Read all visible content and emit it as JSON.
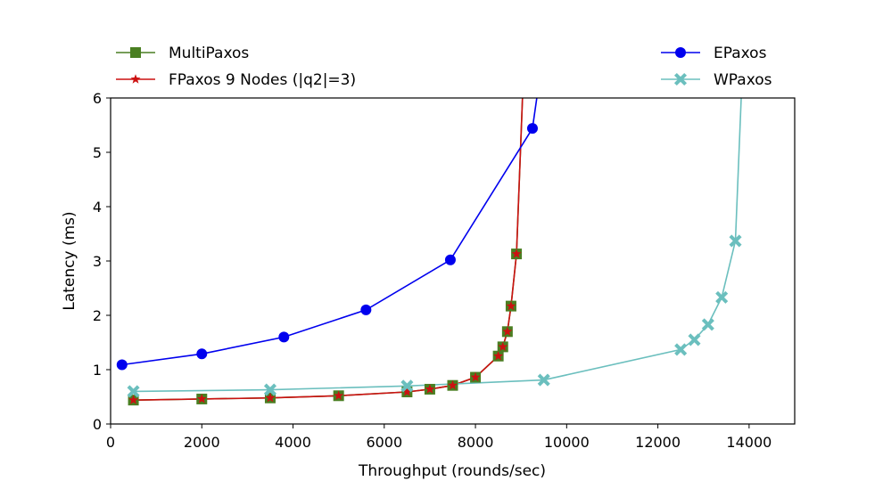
{
  "chart_data": {
    "type": "line",
    "xlabel": "Throughput (rounds/sec)",
    "ylabel": "Latency (ms)",
    "xlim": [
      0,
      15000
    ],
    "ylim": [
      0,
      6
    ],
    "xticks": [
      0,
      2000,
      4000,
      6000,
      8000,
      10000,
      12000,
      14000
    ],
    "yticks": [
      0,
      1,
      2,
      3,
      4,
      5,
      6
    ],
    "grid": false,
    "series": [
      {
        "name": "MultiPaxos",
        "color": "#4a7f22",
        "marker": "square",
        "x": [
          500,
          2000,
          3500,
          5000,
          6500,
          7000,
          7500,
          8000,
          8500,
          8600,
          8700,
          8780,
          8900,
          9100
        ],
        "y": [
          0.44,
          0.46,
          0.48,
          0.52,
          0.59,
          0.64,
          0.71,
          0.86,
          1.25,
          1.42,
          1.7,
          2.17,
          3.13,
          7.5
        ]
      },
      {
        "name": "FPaxos 9 Nodes (|q2|=3)",
        "color": "#cc1111",
        "marker": "star",
        "x": [
          500,
          2000,
          3500,
          5000,
          6500,
          7000,
          7500,
          8000,
          8500,
          8600,
          8700,
          8780,
          8900,
          9100
        ],
        "y": [
          0.44,
          0.46,
          0.48,
          0.52,
          0.59,
          0.64,
          0.71,
          0.86,
          1.25,
          1.42,
          1.7,
          2.17,
          3.13,
          7.5
        ]
      },
      {
        "name": "EPaxos",
        "color": "#0000ee",
        "marker": "circle",
        "x": [
          250,
          2000,
          3800,
          5600,
          7450,
          9250,
          9600
        ],
        "y": [
          1.09,
          1.29,
          1.6,
          2.1,
          3.02,
          5.44,
          7.5
        ]
      },
      {
        "name": "WPaxos",
        "color": "#6bbfbe",
        "marker": "x",
        "x": [
          500,
          3500,
          6500,
          9500,
          12500,
          12800,
          13100,
          13400,
          13700,
          13900
        ],
        "y": [
          0.6,
          0.63,
          0.7,
          0.81,
          1.37,
          1.55,
          1.83,
          2.33,
          3.37,
          7.5
        ]
      }
    ],
    "legend": {
      "left": [
        "MultiPaxos",
        "FPaxos 9 Nodes (|q2|=3)"
      ],
      "right": [
        "EPaxos",
        "WPaxos"
      ]
    }
  }
}
